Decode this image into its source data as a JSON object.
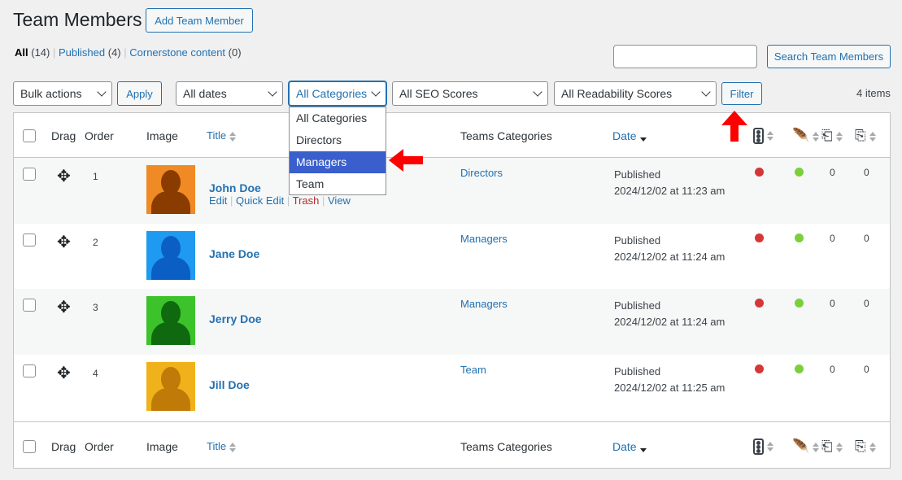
{
  "page": {
    "title": "Team Members",
    "add_button": "Add Team Member"
  },
  "views": [
    {
      "label": "All",
      "count": "(14)"
    },
    {
      "label": "Published",
      "count": "(4)"
    },
    {
      "label": "Cornerstone content",
      "count": "(0)"
    }
  ],
  "search": {
    "value": "",
    "button": "Search Team Members"
  },
  "filters": {
    "bulk": "Bulk actions",
    "apply": "Apply",
    "dates": "All dates",
    "categories": "All Categories",
    "seo": "All SEO Scores",
    "readability": "All Readability Scores",
    "filter": "Filter",
    "items": "4 items"
  },
  "dropdown": {
    "options": [
      "All Categories",
      "Directors",
      "Managers",
      "Team"
    ],
    "highlighted": "Managers"
  },
  "columns": {
    "drag": "Drag",
    "order": "Order",
    "image": "Image",
    "title": "Title",
    "categories": "Teams Categories",
    "date": "Date"
  },
  "row_actions": {
    "edit": "Edit",
    "quick_edit": "Quick Edit",
    "trash": "Trash",
    "view": "View"
  },
  "rows": [
    {
      "order": "1",
      "name": "John Doe",
      "category": "Directors",
      "status": "Published",
      "date": "2024/12/02 at 11:23 am",
      "seo": "red",
      "readability": "green",
      "links": "0",
      "linked": "0",
      "color": "#f08a24",
      "dark": "#8a3b00"
    },
    {
      "order": "2",
      "name": "Jane Doe",
      "category": "Managers",
      "status": "Published",
      "date": "2024/12/02 at 11:24 am",
      "seo": "red",
      "readability": "green",
      "links": "0",
      "linked": "0",
      "color": "#1e9af0",
      "dark": "#0b5fc4"
    },
    {
      "order": "3",
      "name": "Jerry Doe",
      "category": "Managers",
      "status": "Published",
      "date": "2024/12/02 at 11:24 am",
      "seo": "red",
      "readability": "green",
      "links": "0",
      "linked": "0",
      "color": "#3cc22a",
      "dark": "#0f6a0f"
    },
    {
      "order": "4",
      "name": "Jill Doe",
      "category": "Team",
      "status": "Published",
      "date": "2024/12/02 at 11:25 am",
      "seo": "red",
      "readability": "green",
      "links": "0",
      "linked": "0",
      "color": "#f0b21a",
      "dark": "#c07a08"
    }
  ],
  "colors": {
    "accent": "#2271b1",
    "seo_red": "#d63638",
    "read_green": "#7ad03a",
    "annotation_arrow": "#ff0000"
  }
}
